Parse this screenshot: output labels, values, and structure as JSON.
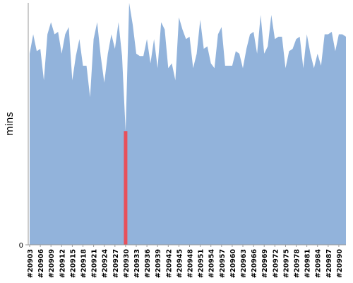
{
  "chart_data": {
    "type": "area",
    "y_label": "mins",
    "categories": [
      "#20903",
      null,
      null,
      "#20906",
      null,
      null,
      "#20909",
      null,
      null,
      "#20912",
      null,
      null,
      "#20915",
      null,
      null,
      "#20918",
      null,
      null,
      "#20921",
      null,
      null,
      "#20924",
      null,
      null,
      "#20927",
      null,
      null,
      "#20930",
      null,
      null,
      "#20933",
      null,
      null,
      "#20936",
      null,
      null,
      "#20939",
      null,
      null,
      "#20942",
      null,
      null,
      "#20945",
      null,
      null,
      "#20948",
      null,
      null,
      "#20951",
      null,
      null,
      "#20954",
      null,
      null,
      "#20957",
      null,
      null,
      "#20960",
      null,
      null,
      "#20963",
      null,
      null,
      "#20966",
      null,
      null,
      "#20969",
      null,
      null,
      "#20972",
      null,
      null,
      "#20975",
      null,
      null,
      "#20978",
      null,
      null,
      "#20981",
      null,
      null,
      "#20984",
      null,
      null,
      "#20987",
      null,
      null,
      "#20990",
      null,
      null
    ],
    "values": [
      79,
      87,
      80,
      81,
      68,
      87,
      92,
      87,
      88,
      79,
      87,
      90,
      68,
      78,
      85,
      74,
      74,
      61,
      85,
      92,
      78,
      67,
      79,
      87,
      81,
      92,
      78,
      47,
      100,
      91,
      79,
      78,
      78,
      85,
      75,
      85,
      73,
      92,
      89,
      73,
      75,
      68,
      94,
      89,
      85,
      86,
      73,
      79,
      93,
      81,
      82,
      75,
      73,
      87,
      90,
      74,
      74,
      74,
      80,
      79,
      73,
      81,
      87,
      88,
      79,
      95,
      79,
      82,
      95,
      85,
      86,
      86,
      73,
      80,
      81,
      85,
      86,
      73,
      87,
      79,
      73,
      79,
      74,
      87,
      87,
      88,
      80,
      87,
      87,
      86
    ],
    "color": "#92b3db",
    "failed_builds": [
      27
    ],
    "failed_color": "#e8505b",
    "ylim": [
      0,
      100
    ],
    "yticks": [
      0
    ]
  }
}
